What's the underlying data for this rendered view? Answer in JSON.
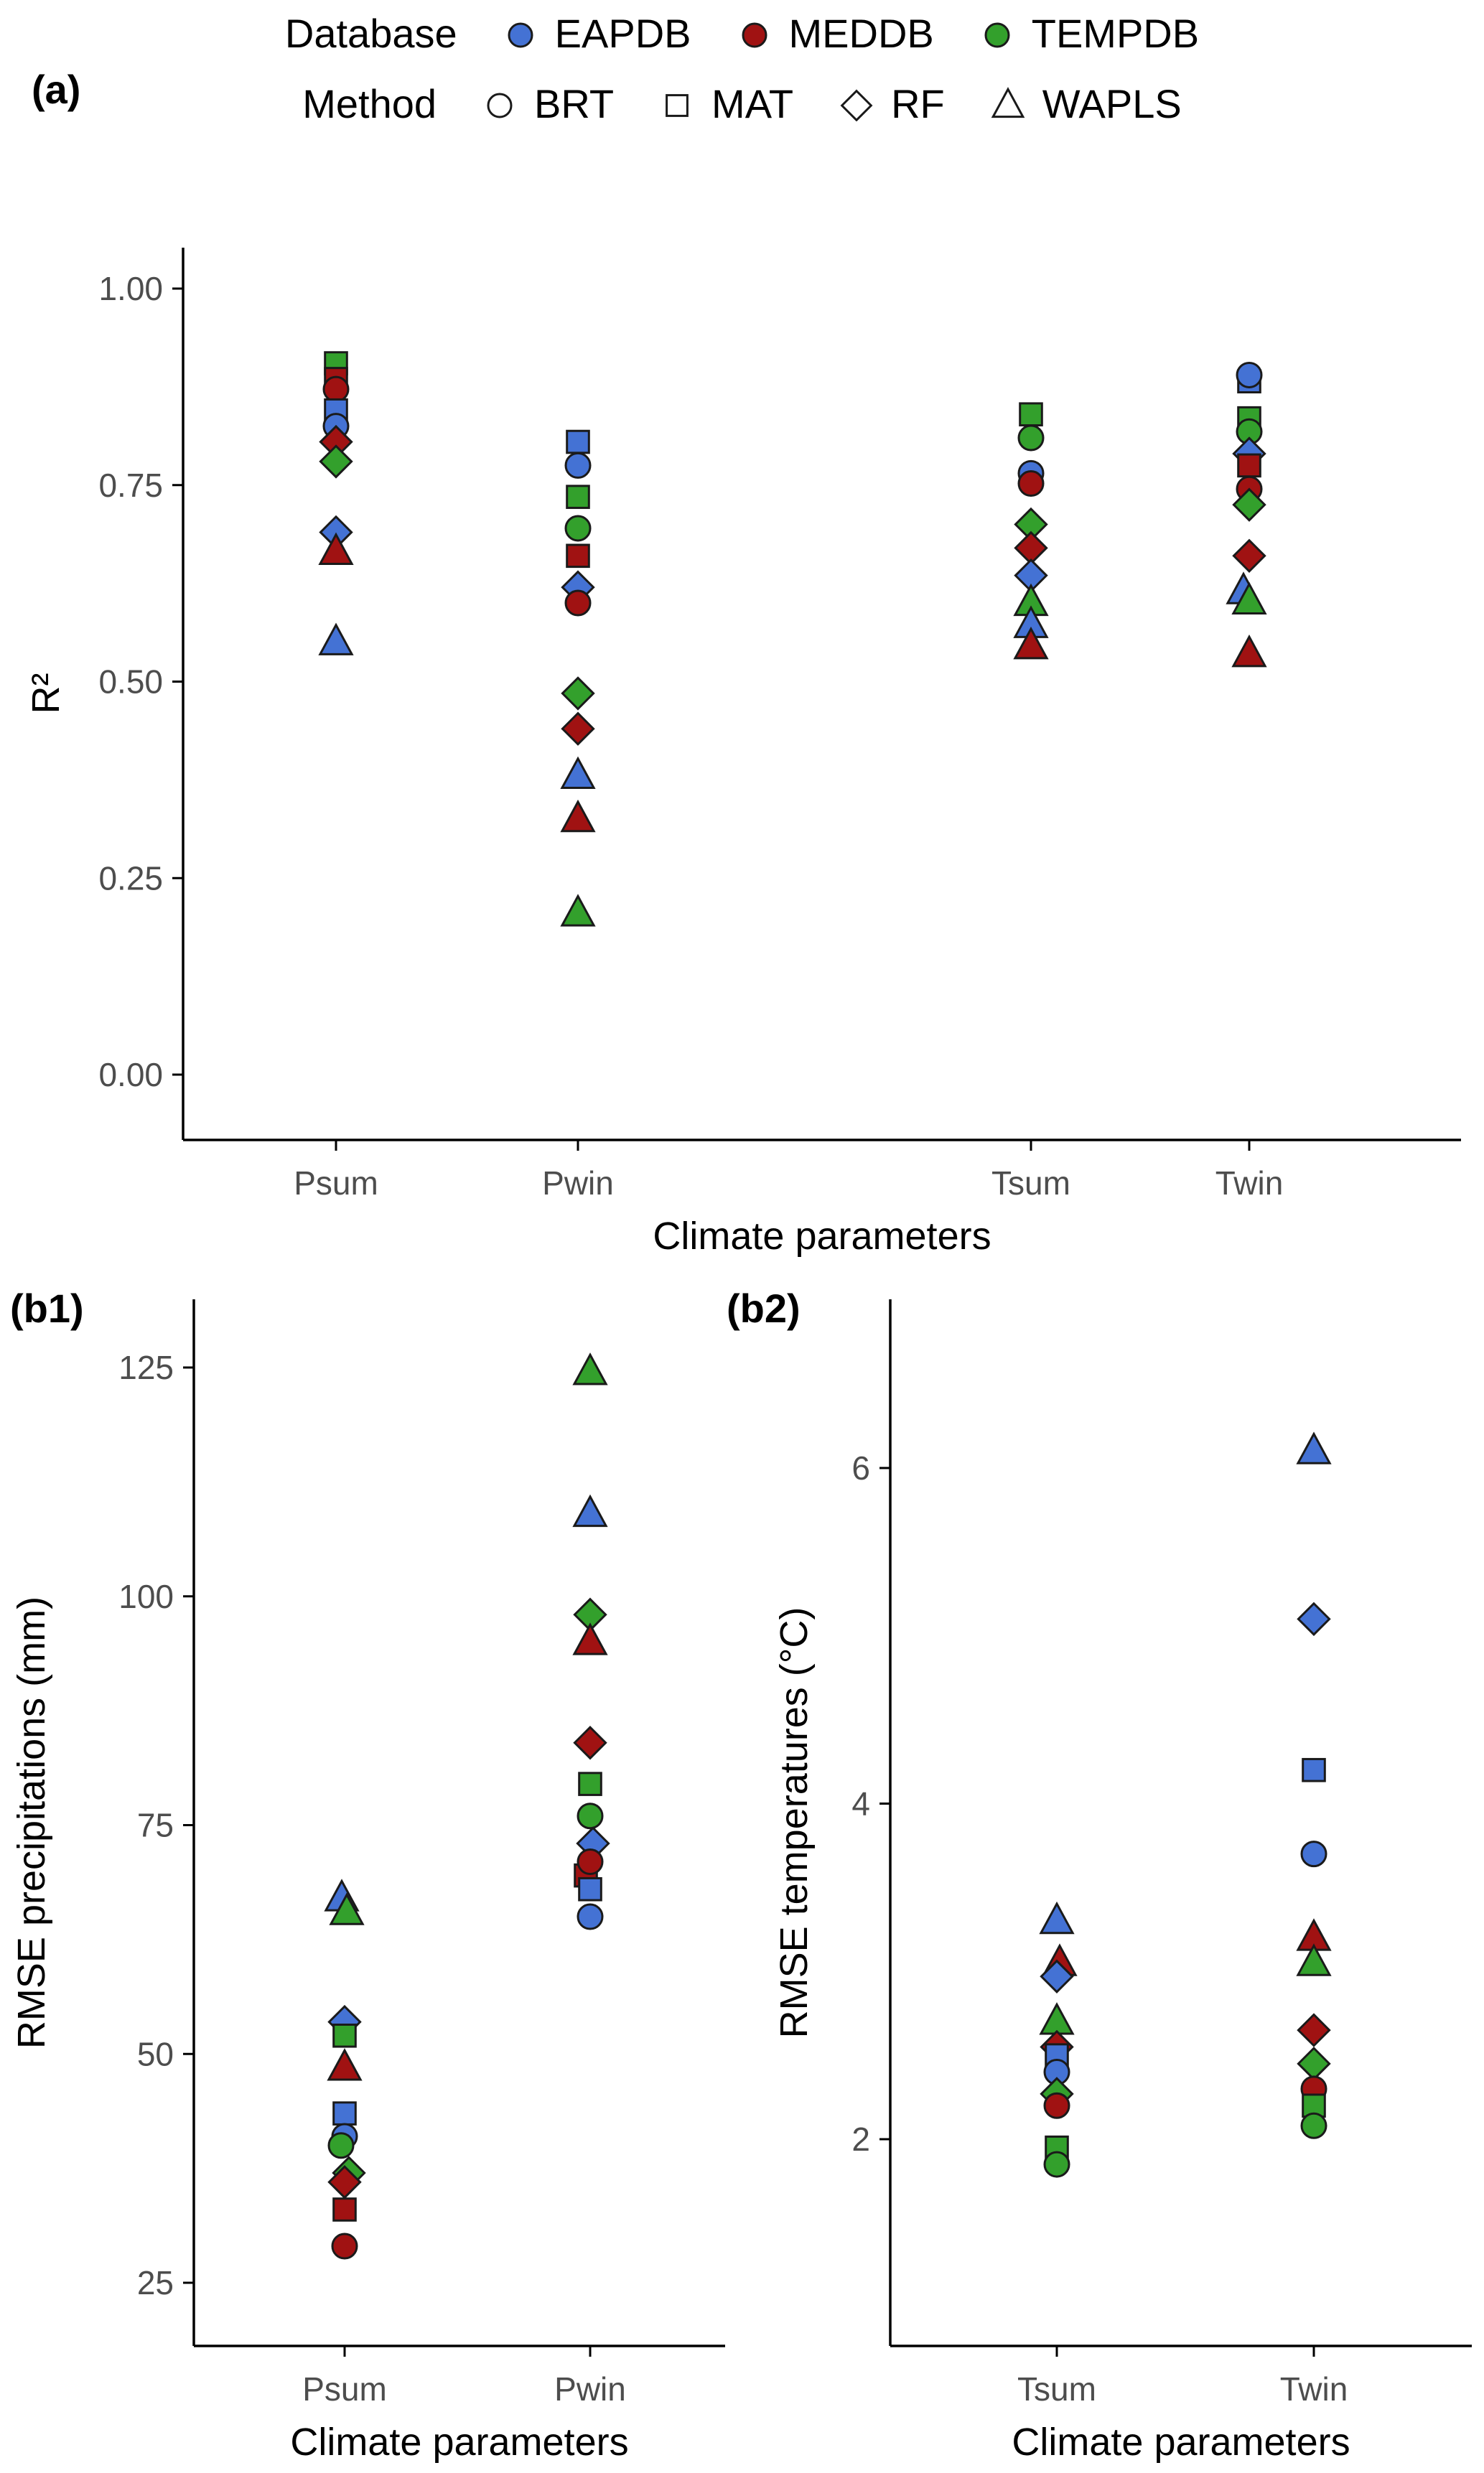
{
  "legend": {
    "database": {
      "label": "Database",
      "items": [
        {
          "name": "EAPDB",
          "color": "#4472D4"
        },
        {
          "name": "MEDDB",
          "color": "#A01212"
        },
        {
          "name": "TEMPDB",
          "color": "#33A02C"
        }
      ]
    },
    "method": {
      "label": "Method",
      "items": [
        {
          "name": "BRT",
          "shape": "circle"
        },
        {
          "name": "MAT",
          "shape": "square"
        },
        {
          "name": "RF",
          "shape": "diamond"
        },
        {
          "name": "WAPLS",
          "shape": "triangle"
        }
      ]
    }
  },
  "panel_tags": {
    "a": "(a)",
    "b1": "(b1)",
    "b2": "(b2)"
  },
  "chart_data": [
    {
      "id": "a",
      "type": "scatter",
      "title": "",
      "xlabel": "Climate parameters",
      "ylabel": "R²",
      "categories": [
        "Psum",
        "Pwin",
        "Tsum",
        "Twin"
      ],
      "ylim": [
        -0.08,
        1.05
      ],
      "yticks": [
        0,
        0.25,
        0.5,
        0.75,
        1
      ],
      "ytick_labels": [
        "0.00",
        "0.25",
        "0.50",
        "0.75",
        "1.00"
      ],
      "grid": false,
      "legend_position": "top",
      "points": [
        {
          "category": "Psum",
          "db": "TEMPDB",
          "method": "MAT",
          "value": 0.905
        },
        {
          "category": "Psum",
          "db": "MEDDB",
          "method": "MAT",
          "value": 0.885
        },
        {
          "category": "Psum",
          "db": "MEDDB",
          "method": "BRT",
          "value": 0.872
        },
        {
          "category": "Psum",
          "db": "EAPDB",
          "method": "MAT",
          "value": 0.845
        },
        {
          "category": "Psum",
          "db": "EAPDB",
          "method": "BRT",
          "value": 0.825
        },
        {
          "category": "Psum",
          "db": "MEDDB",
          "method": "RF",
          "value": 0.805
        },
        {
          "category": "Psum",
          "db": "TEMPDB",
          "method": "RF",
          "value": 0.78
        },
        {
          "category": "Psum",
          "db": "EAPDB",
          "method": "RF",
          "value": 0.69
        },
        {
          "category": "Psum",
          "db": "MEDDB",
          "method": "WAPLS",
          "value": 0.665
        },
        {
          "category": "Psum",
          "db": "EAPDB",
          "method": "WAPLS",
          "value": 0.55
        },
        {
          "category": "Pwin",
          "db": "EAPDB",
          "method": "MAT",
          "value": 0.805
        },
        {
          "category": "Pwin",
          "db": "EAPDB",
          "method": "BRT",
          "value": 0.775
        },
        {
          "category": "Pwin",
          "db": "TEMPDB",
          "method": "MAT",
          "value": 0.735
        },
        {
          "category": "Pwin",
          "db": "TEMPDB",
          "method": "BRT",
          "value": 0.695
        },
        {
          "category": "Pwin",
          "db": "MEDDB",
          "method": "MAT",
          "value": 0.66
        },
        {
          "category": "Pwin",
          "db": "EAPDB",
          "method": "RF",
          "value": 0.62
        },
        {
          "category": "Pwin",
          "db": "MEDDB",
          "method": "BRT",
          "value": 0.6
        },
        {
          "category": "Pwin",
          "db": "TEMPDB",
          "method": "RF",
          "value": 0.485
        },
        {
          "category": "Pwin",
          "db": "MEDDB",
          "method": "RF",
          "value": 0.44
        },
        {
          "category": "Pwin",
          "db": "EAPDB",
          "method": "WAPLS",
          "value": 0.38
        },
        {
          "category": "Pwin",
          "db": "MEDDB",
          "method": "WAPLS",
          "value": 0.325
        },
        {
          "category": "Pwin",
          "db": "TEMPDB",
          "method": "WAPLS",
          "value": 0.205
        },
        {
          "category": "Tsum",
          "db": "TEMPDB",
          "method": "MAT",
          "value": 0.84
        },
        {
          "category": "Tsum",
          "db": "TEMPDB",
          "method": "BRT",
          "value": 0.81
        },
        {
          "category": "Tsum",
          "db": "EAPDB",
          "method": "BRT",
          "value": 0.765
        },
        {
          "category": "Tsum",
          "db": "MEDDB",
          "method": "BRT",
          "value": 0.752
        },
        {
          "category": "Tsum",
          "db": "TEMPDB",
          "method": "RF",
          "value": 0.7
        },
        {
          "category": "Tsum",
          "db": "MEDDB",
          "method": "RF",
          "value": 0.67
        },
        {
          "category": "Tsum",
          "db": "EAPDB",
          "method": "RF",
          "value": 0.635
        },
        {
          "category": "Tsum",
          "db": "TEMPDB",
          "method": "WAPLS",
          "value": 0.6
        },
        {
          "category": "Tsum",
          "db": "EAPDB",
          "method": "WAPLS",
          "value": 0.572
        },
        {
          "category": "Tsum",
          "db": "MEDDB",
          "method": "WAPLS",
          "value": 0.545
        },
        {
          "category": "Twin",
          "db": "EAPDB",
          "method": "MAT",
          "value": 0.882
        },
        {
          "category": "Twin",
          "db": "EAPDB",
          "method": "BRT",
          "value": 0.89
        },
        {
          "category": "Twin",
          "db": "TEMPDB",
          "method": "MAT",
          "value": 0.835
        },
        {
          "category": "Twin",
          "db": "TEMPDB",
          "method": "BRT",
          "value": 0.818
        },
        {
          "category": "Twin",
          "db": "EAPDB",
          "method": "RF",
          "value": 0.79
        },
        {
          "category": "Twin",
          "db": "MEDDB",
          "method": "MAT",
          "value": 0.775
        },
        {
          "category": "Twin",
          "db": "MEDDB",
          "method": "BRT",
          "value": 0.745
        },
        {
          "category": "Twin",
          "db": "TEMPDB",
          "method": "RF",
          "value": 0.725
        },
        {
          "category": "Twin",
          "db": "MEDDB",
          "method": "RF",
          "value": 0.66
        },
        {
          "category": "Twin",
          "db": "EAPDB",
          "method": "WAPLS",
          "value": 0.615,
          "dx": -8
        },
        {
          "category": "Twin",
          "db": "TEMPDB",
          "method": "WAPLS",
          "value": 0.602
        },
        {
          "category": "Twin",
          "db": "MEDDB",
          "method": "WAPLS",
          "value": 0.535
        }
      ]
    },
    {
      "id": "b1",
      "type": "scatter",
      "title": "",
      "xlabel": "Climate parameters",
      "ylabel": "RMSE precipitations (mm)",
      "categories": [
        "Psum",
        "Pwin"
      ],
      "ylim": [
        18,
        132
      ],
      "yticks": [
        25,
        50,
        75,
        100,
        125
      ],
      "ytick_labels": [
        "25",
        "50",
        "75",
        "100",
        "125"
      ],
      "grid": false,
      "points": [
        {
          "category": "Psum",
          "db": "EAPDB",
          "method": "WAPLS",
          "value": 67,
          "dx": -4
        },
        {
          "category": "Psum",
          "db": "TEMPDB",
          "method": "WAPLS",
          "value": 65.5,
          "dx": 3
        },
        {
          "category": "Psum",
          "db": "EAPDB",
          "method": "RF",
          "value": 53.5
        },
        {
          "category": "Psum",
          "db": "TEMPDB",
          "method": "MAT",
          "value": 52
        },
        {
          "category": "Psum",
          "db": "MEDDB",
          "method": "WAPLS",
          "value": 48.5
        },
        {
          "category": "Psum",
          "db": "EAPDB",
          "method": "MAT",
          "value": 43.5
        },
        {
          "category": "Psum",
          "db": "EAPDB",
          "method": "BRT",
          "value": 41
        },
        {
          "category": "Psum",
          "db": "TEMPDB",
          "method": "BRT",
          "value": 40,
          "dx": -5
        },
        {
          "category": "Psum",
          "db": "TEMPDB",
          "method": "RF",
          "value": 37,
          "dx": 6
        },
        {
          "category": "Psum",
          "db": "MEDDB",
          "method": "RF",
          "value": 36
        },
        {
          "category": "Psum",
          "db": "MEDDB",
          "method": "MAT",
          "value": 33
        },
        {
          "category": "Psum",
          "db": "MEDDB",
          "method": "BRT",
          "value": 29
        },
        {
          "category": "Pwin",
          "db": "TEMPDB",
          "method": "WAPLS",
          "value": 124.5
        },
        {
          "category": "Pwin",
          "db": "EAPDB",
          "method": "WAPLS",
          "value": 109
        },
        {
          "category": "Pwin",
          "db": "TEMPDB",
          "method": "RF",
          "value": 98
        },
        {
          "category": "Pwin",
          "db": "MEDDB",
          "method": "WAPLS",
          "value": 95
        },
        {
          "category": "Pwin",
          "db": "MEDDB",
          "method": "RF",
          "value": 84
        },
        {
          "category": "Pwin",
          "db": "TEMPDB",
          "method": "MAT",
          "value": 79.5
        },
        {
          "category": "Pwin",
          "db": "TEMPDB",
          "method": "BRT",
          "value": 76
        },
        {
          "category": "Pwin",
          "db": "EAPDB",
          "method": "RF",
          "value": 73,
          "dx": 4
        },
        {
          "category": "Pwin",
          "db": "MEDDB",
          "method": "MAT",
          "value": 69.5,
          "dx": -6
        },
        {
          "category": "Pwin",
          "db": "MEDDB",
          "method": "BRT",
          "value": 71
        },
        {
          "category": "Pwin",
          "db": "EAPDB",
          "method": "MAT",
          "value": 68
        },
        {
          "category": "Pwin",
          "db": "EAPDB",
          "method": "BRT",
          "value": 65
        }
      ]
    },
    {
      "id": "b2",
      "type": "scatter",
      "title": "",
      "xlabel": "Climate parameters",
      "ylabel": "RMSE temperatures (°C)",
      "categories": [
        "Tsum",
        "Twin"
      ],
      "ylim": [
        0.8,
        7.0
      ],
      "yticks": [
        2,
        4,
        6
      ],
      "ytick_labels": [
        "2",
        "4",
        "6"
      ],
      "grid": false,
      "points": [
        {
          "category": "Tsum",
          "db": "EAPDB",
          "method": "WAPLS",
          "value": 3.3
        },
        {
          "category": "Tsum",
          "db": "MEDDB",
          "method": "WAPLS",
          "value": 3.05,
          "dx": 4
        },
        {
          "category": "Tsum",
          "db": "EAPDB",
          "method": "RF",
          "value": 2.97
        },
        {
          "category": "Tsum",
          "db": "TEMPDB",
          "method": "WAPLS",
          "value": 2.7
        },
        {
          "category": "Tsum",
          "db": "MEDDB",
          "method": "RF",
          "value": 2.55
        },
        {
          "category": "Tsum",
          "db": "EAPDB",
          "method": "MAT",
          "value": 2.5
        },
        {
          "category": "Tsum",
          "db": "EAPDB",
          "method": "BRT",
          "value": 2.4
        },
        {
          "category": "Tsum",
          "db": "TEMPDB",
          "method": "RF",
          "value": 2.27
        },
        {
          "category": "Tsum",
          "db": "MEDDB",
          "method": "BRT",
          "value": 2.2
        },
        {
          "category": "Tsum",
          "db": "TEMPDB",
          "method": "MAT",
          "value": 1.95
        },
        {
          "category": "Tsum",
          "db": "TEMPDB",
          "method": "BRT",
          "value": 1.85
        },
        {
          "category": "Twin",
          "db": "EAPDB",
          "method": "WAPLS",
          "value": 6.1
        },
        {
          "category": "Twin",
          "db": "EAPDB",
          "method": "RF",
          "value": 5.1
        },
        {
          "category": "Twin",
          "db": "EAPDB",
          "method": "MAT",
          "value": 4.2
        },
        {
          "category": "Twin",
          "db": "EAPDB",
          "method": "BRT",
          "value": 3.7
        },
        {
          "category": "Twin",
          "db": "MEDDB",
          "method": "WAPLS",
          "value": 3.2
        },
        {
          "category": "Twin",
          "db": "TEMPDB",
          "method": "WAPLS",
          "value": 3.05
        },
        {
          "category": "Twin",
          "db": "MEDDB",
          "method": "RF",
          "value": 2.65
        },
        {
          "category": "Twin",
          "db": "TEMPDB",
          "method": "RF",
          "value": 2.45
        },
        {
          "category": "Twin",
          "db": "MEDDB",
          "method": "BRT",
          "value": 2.3
        },
        {
          "category": "Twin",
          "db": "TEMPDB",
          "method": "MAT",
          "value": 2.2
        },
        {
          "category": "Twin",
          "db": "TEMPDB",
          "method": "BRT",
          "value": 2.08
        }
      ]
    }
  ]
}
